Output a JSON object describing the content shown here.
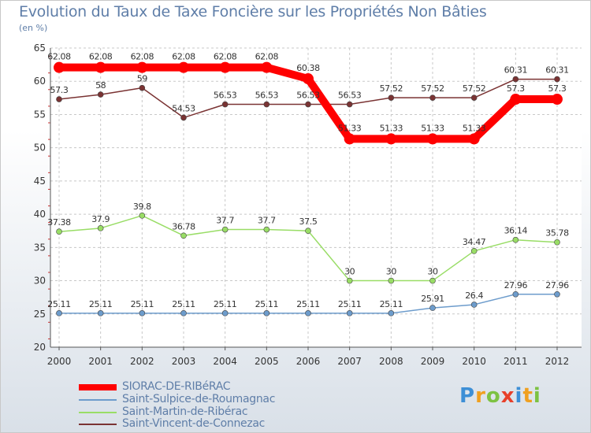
{
  "title": "Evolution du Taux de Taxe Foncière sur les Propriétés Non Bâties",
  "subtitle": "(en %)",
  "chart_data": {
    "type": "line",
    "title": "Evolution du Taux de Taxe Foncière sur les Propriétés Non Bâties",
    "ylabel": "(en %)",
    "xlabel": "",
    "ylim": [
      20,
      65
    ],
    "yticks": [
      "20",
      "25",
      "30",
      "35",
      "40",
      "45",
      "50",
      "55",
      "60",
      "65"
    ],
    "categories": [
      "2000",
      "2001",
      "2002",
      "2003",
      "2004",
      "2005",
      "2006",
      "2007",
      "2008",
      "2009",
      "2010",
      "2011",
      "2012"
    ],
    "series": [
      {
        "name": "SIORAC-DE-RIBéRAC",
        "color": "#ff0000",
        "values": [
          62.08,
          62.08,
          62.08,
          62.08,
          62.08,
          62.08,
          60.38,
          51.33,
          51.33,
          51.33,
          51.33,
          57.3,
          57.3
        ],
        "labels": [
          "62.08",
          "62.08",
          "62.08",
          "62.08",
          "62.08",
          "62.08",
          "60.38",
          "51.33",
          "51.33",
          "51.33",
          "51.33",
          "57.3",
          "57.3"
        ]
      },
      {
        "name": "Saint-Sulpice-de-Roumagnac",
        "color": "#6d9ccc",
        "values": [
          25.11,
          25.11,
          25.11,
          25.11,
          25.11,
          25.11,
          25.11,
          25.11,
          25.11,
          25.91,
          26.4,
          27.96,
          27.96
        ],
        "labels": [
          "25.11",
          "25.11",
          "25.11",
          "25.11",
          "25.11",
          "25.11",
          "25.11",
          "25.11",
          "25.11",
          "25.91",
          "26.4",
          "27.96",
          "27.96"
        ]
      },
      {
        "name": "Saint-Martin-de-Ribérac",
        "color": "#99dd66",
        "values": [
          37.38,
          37.9,
          39.8,
          36.78,
          37.7,
          37.7,
          37.5,
          30,
          30,
          30,
          34.47,
          36.14,
          35.78
        ],
        "labels": [
          "37.38",
          "37.9",
          "39.8",
          "36.78",
          "37.7",
          "37.7",
          "37.5",
          "30",
          "30",
          "30",
          "34.47",
          "36.14",
          "35.78"
        ]
      },
      {
        "name": "Saint-Vincent-de-Connezac",
        "color": "#7a3333",
        "values": [
          57.3,
          58,
          59,
          54.53,
          56.53,
          56.53,
          56.53,
          56.53,
          57.52,
          57.52,
          57.52,
          60.31,
          60.31
        ],
        "labels": [
          "57.3",
          "58",
          "59",
          "54.53",
          "56.53",
          "56.53",
          "56.53",
          "56.53",
          "57.52",
          "57.52",
          "57.52",
          "60.31",
          "60.31"
        ]
      }
    ],
    "legend": "bottom-left"
  },
  "logo": {
    "letters": [
      "P",
      "r",
      "o",
      "x",
      "i",
      "t",
      "i"
    ]
  }
}
